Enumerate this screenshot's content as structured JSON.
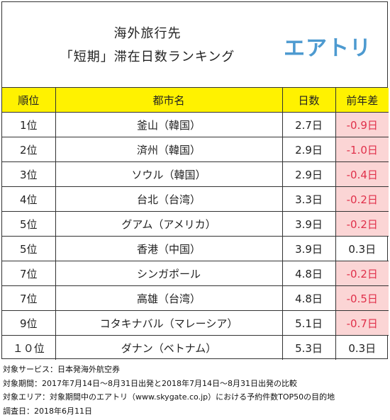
{
  "header": {
    "title_line1": "海外旅行先",
    "title_line2": "「短期」滞在日数ランキング",
    "brand": "エアトリ"
  },
  "table": {
    "columns": [
      "順位",
      "都市名",
      "日数",
      "前年差"
    ],
    "rows": [
      {
        "rank": "1位",
        "city": "釜山（韓国）",
        "days": "2.7日",
        "diff": "-0.9日",
        "negative": true
      },
      {
        "rank": "2位",
        "city": "済州（韓国）",
        "days": "2.9日",
        "diff": "-1.0日",
        "negative": true
      },
      {
        "rank": "3位",
        "city": "ソウル（韓国）",
        "days": "2.9日",
        "diff": "-0.4日",
        "negative": true
      },
      {
        "rank": "4位",
        "city": "台北（台湾）",
        "days": "3.3日",
        "diff": "-0.2日",
        "negative": true
      },
      {
        "rank": "5位",
        "city": "グアム（アメリカ）",
        "days": "3.9日",
        "diff": "-0.2日",
        "negative": true
      },
      {
        "rank": "5位",
        "city": "香港（中国）",
        "days": "3.9日",
        "diff": "0.3日",
        "negative": false
      },
      {
        "rank": "7位",
        "city": "シンガポール",
        "days": "4.8日",
        "diff": "-0.2日",
        "negative": true
      },
      {
        "rank": "7位",
        "city": "高雄（台湾）",
        "days": "4.8日",
        "diff": "-0.5日",
        "negative": true
      },
      {
        "rank": "9位",
        "city": "コタキナバル（マレーシア）",
        "days": "5.1日",
        "diff": "-0.7日",
        "negative": true
      },
      {
        "rank": "１０位",
        "city": "ダナン（ベトナム）",
        "days": "5.3日",
        "diff": "0.3日",
        "negative": false
      }
    ]
  },
  "notes": [
    "対象サービス：日本発海外航空券",
    "対象期間：2017年7月14日～8月31日出発と2018年7月14日～8月31日出発の比較",
    "対象エリア：対象期間中のエアトリ（www.skygate.co.jp）における予約件数TOP50の目的地",
    "調査日：2018年6月11日"
  ],
  "colors": {
    "header_bg": "#fff200",
    "negative_bg": "#fbd5d5",
    "negative_text": "#e0304a",
    "brand": "#4d9ad0"
  }
}
